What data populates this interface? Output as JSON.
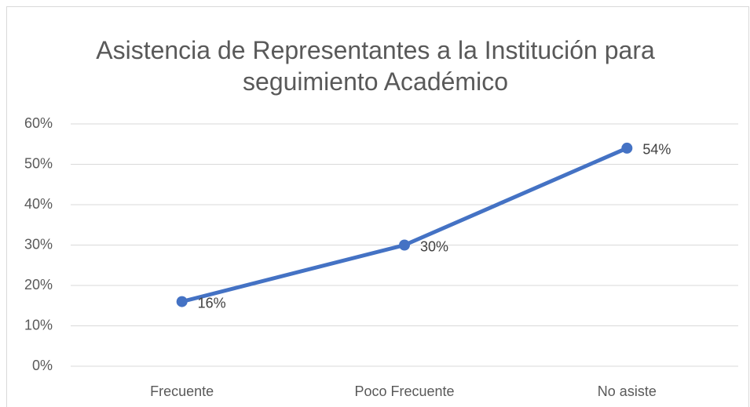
{
  "chart_data": {
    "type": "line",
    "title": "Asistencia de Representantes a la Institución para seguimiento Académico",
    "categories": [
      "Frecuente",
      "Poco Frecuente",
      "No asiste"
    ],
    "values": [
      16,
      30,
      54
    ],
    "value_labels": [
      "16%",
      "30%",
      "54%"
    ],
    "color": "#4472c4",
    "ylim": [
      0,
      60
    ],
    "yticks": [
      {
        "value": 0,
        "label": "0%"
      },
      {
        "value": 10,
        "label": "10%"
      },
      {
        "value": 20,
        "label": "20%"
      },
      {
        "value": 30,
        "label": "30%"
      },
      {
        "value": 40,
        "label": "40%"
      },
      {
        "value": 50,
        "label": "50%"
      },
      {
        "value": 60,
        "label": "60%"
      }
    ],
    "grid": true
  }
}
